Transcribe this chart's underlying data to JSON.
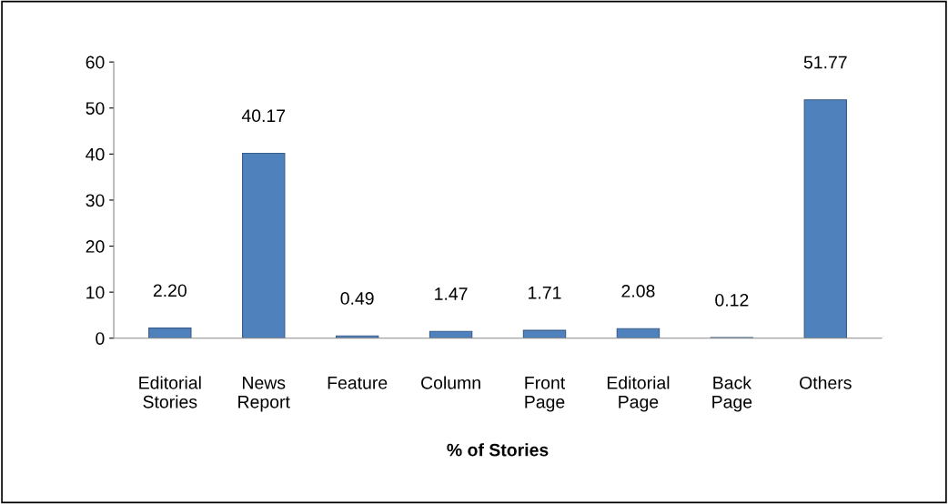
{
  "chart_data": {
    "type": "bar",
    "categories": [
      "Editorial\nStories",
      "News\nReport",
      "Feature",
      "Column",
      "Front\nPage",
      "Editorial\nPage",
      "Back\nPage",
      "Others"
    ],
    "values": [
      2.2,
      40.17,
      0.49,
      1.47,
      1.71,
      2.08,
      0.12,
      51.77
    ],
    "value_labels": [
      "2.20",
      "40.17",
      "0.49",
      "1.47",
      "1.71",
      "2.08",
      "0.12",
      "51.77"
    ],
    "color": "#4f81bd",
    "xlabel": "% of Stories",
    "ylim": [
      0,
      60
    ],
    "yticks": [
      0,
      10,
      20,
      30,
      40,
      50,
      60
    ],
    "grid": false,
    "legend": false
  }
}
